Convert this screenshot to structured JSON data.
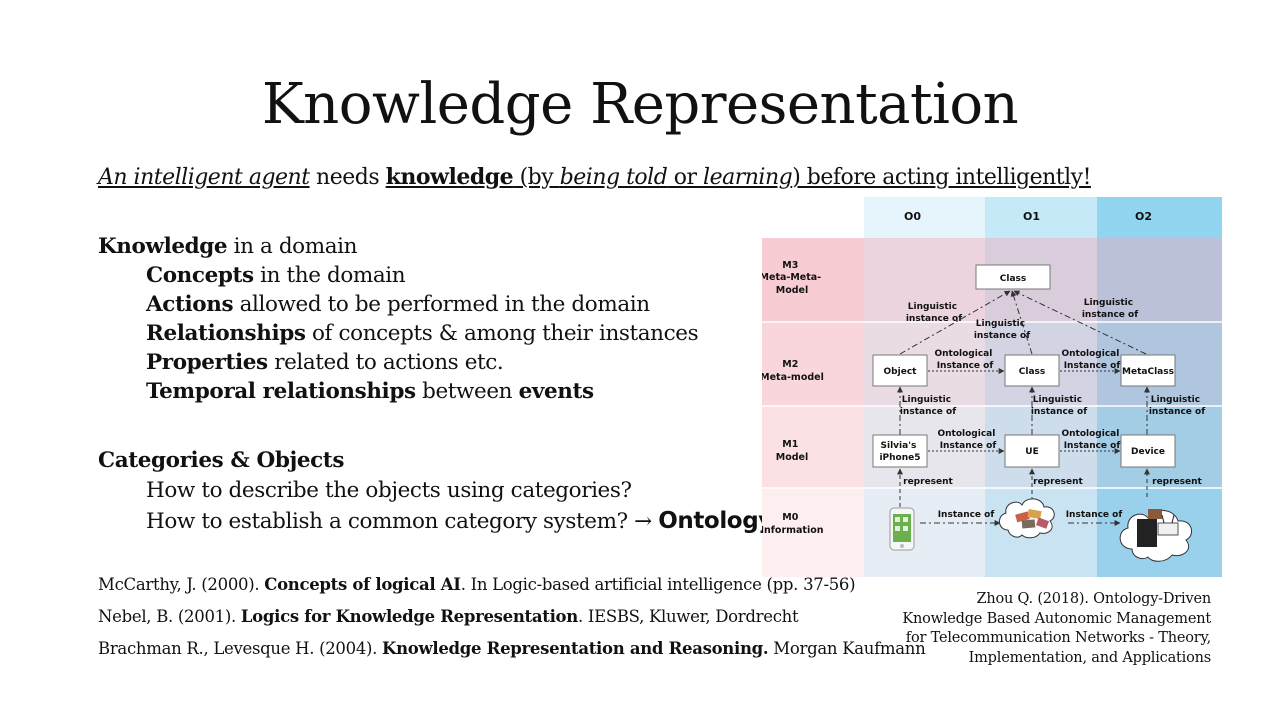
{
  "title": "Knowledge Representation",
  "intro": {
    "p1": "An intelligent agent",
    "p2": " needs ",
    "p3": "knowledge",
    "p4": " (by ",
    "p5": "being told",
    "p6": " or ",
    "p7": "learning",
    "p8": ") before acting intelligently!"
  },
  "knowledge": {
    "head_bold": "Knowledge",
    "head_rest": " in a domain",
    "items": [
      {
        "bold": "Concepts",
        "rest": " in the domain"
      },
      {
        "bold": "Actions",
        "rest": " allowed to be performed in the domain"
      },
      {
        "bold": "Relationships",
        "rest": " of concepts & among their instances"
      },
      {
        "bold": "Properties",
        "rest": " related to actions etc."
      }
    ],
    "temporal": {
      "b1": "Temporal relationships",
      "mid": " between ",
      "b2": "events"
    }
  },
  "categories": {
    "head": "Categories & Objects",
    "q1": "How to describe the objects using categories?",
    "q2": "How to establish a common category system? → ",
    "q2_bold": "Ontology"
  },
  "references": [
    {
      "pre": "McCarthy, J. (2000). ",
      "bold": "Concepts of logical AI",
      "post": ". In Logic-based artificial intelligence (pp. 37-56)"
    },
    {
      "pre": "Nebel, B. (2001). ",
      "bold": "Logics for Knowledge Representation",
      "post": ". IESBS, Kluwer, Dordrecht"
    },
    {
      "pre": "Brachman R., Levesque H. (2004). ",
      "bold": "Knowledge Representation and Reasoning.",
      "post": " Morgan Kaufmann"
    }
  ],
  "citation": [
    "Zhou Q. (2018). Ontology-Driven",
    "Knowledge Based Autonomic Management",
    "for Telecommunication Networks - Theory,",
    "Implementation, and Applications"
  ],
  "diagram": {
    "columns": [
      "O0",
      "O1",
      "O2"
    ],
    "rows": {
      "m3": [
        "M3",
        "Meta-Meta-",
        "Model"
      ],
      "m2": [
        "M2",
        "Meta-model"
      ],
      "m1": [
        "M1",
        "Model"
      ],
      "m0": [
        "M0",
        "Information"
      ]
    },
    "nodes": {
      "class_top": "Class",
      "object": "Object",
      "class_mid": "Class",
      "metaclass": "MetaClass",
      "iphone": [
        "Silvia's",
        "iPhone5"
      ],
      "ue": "UE",
      "device": "Device"
    },
    "labels": {
      "linguistic": [
        "Linguistic",
        "instance of"
      ],
      "ontological": [
        "Ontological",
        "Instance of"
      ],
      "represent": "represent",
      "instance_of": "Instance of"
    },
    "colors": {
      "o0": "#e6f4fb",
      "o1": "#c4e8f7",
      "o2": "#8fd4f0",
      "m_pink": "#f6c8cf"
    }
  }
}
